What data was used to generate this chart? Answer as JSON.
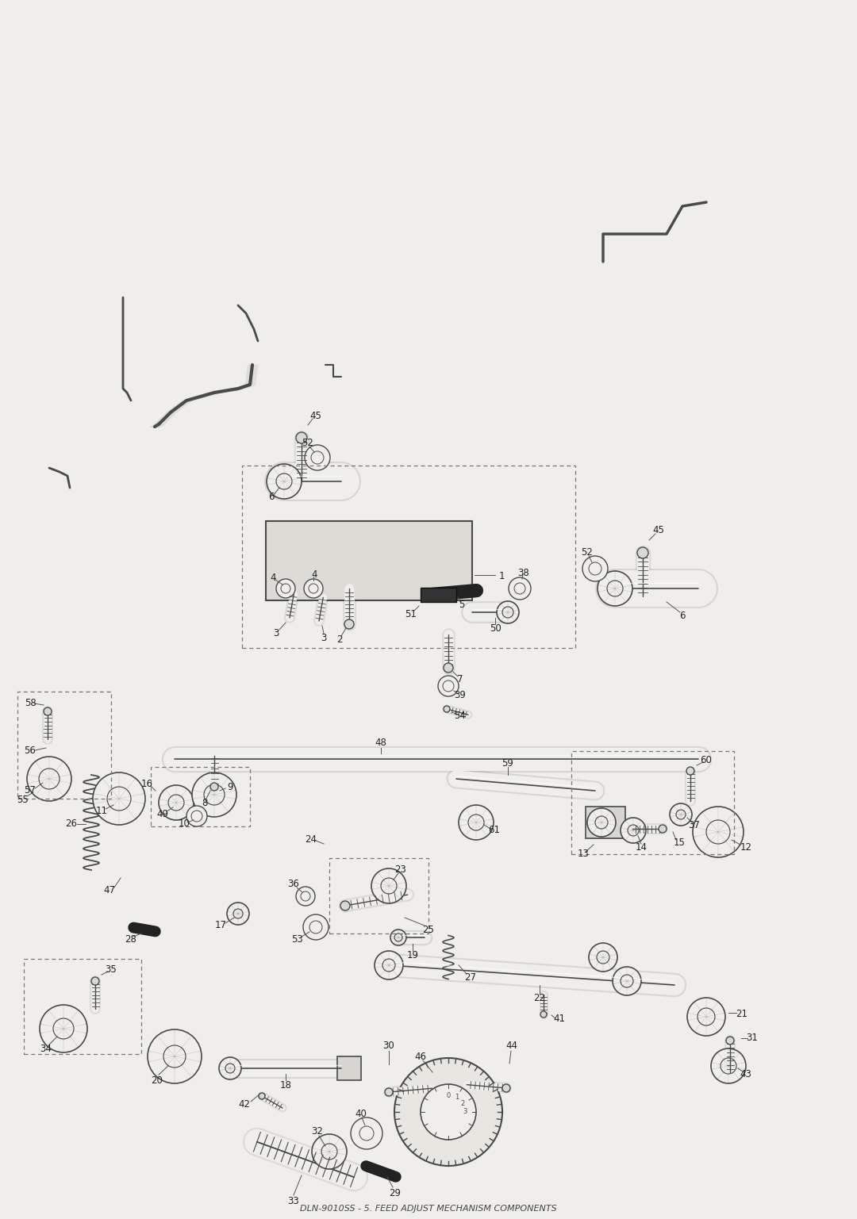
{
  "title": "DLN-9010SS - 5. FEED ADJUST MECHANISM COMPONENTS",
  "bg_color": "#f0eeeb",
  "line_color": "#4a4a4a",
  "text_color": "#222222",
  "dashed_box_color": "#777777",
  "fig_width": 10.8,
  "fig_height": 15.37,
  "dpi": 100
}
